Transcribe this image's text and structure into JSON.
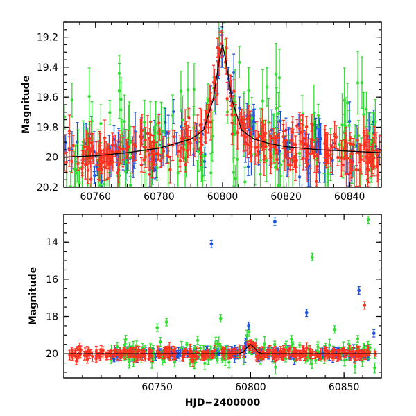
{
  "chart_data": [
    {
      "type": "scatter",
      "panel": "top",
      "xlabel": "",
      "ylabel": "Magnitude",
      "xlim": [
        60750,
        60850
      ],
      "ylim": [
        19.1,
        20.2
      ],
      "y_inverted": true,
      "xticks": [
        60760,
        60780,
        60800,
        60820,
        60840
      ],
      "xtick_labels": [
        "60760",
        "60780",
        "60800",
        "60820",
        "60840"
      ],
      "yticks": [
        19.2,
        19.4,
        19.6,
        19.8,
        20.0,
        20.2
      ],
      "ytick_labels": [
        "19.2",
        "19.4",
        "19.6",
        "19.8",
        "20",
        "20.2"
      ],
      "model_curve": {
        "x": [
          60750,
          60760,
          60770,
          60780,
          60790,
          60794,
          60797,
          60799,
          60800,
          60801,
          60803,
          60806,
          60810,
          60815,
          60820,
          60830,
          60840,
          60850
        ],
        "y": [
          20.0,
          19.99,
          19.97,
          19.94,
          19.88,
          19.82,
          19.62,
          19.35,
          19.25,
          19.35,
          19.62,
          19.82,
          19.88,
          19.91,
          19.93,
          19.95,
          19.96,
          19.97
        ]
      },
      "series": [
        {
          "color": "#2255dd",
          "marker": "circle",
          "description_of_points": "dense noisy light curve ~19.8–20.1 with large error bars, peak near 60800"
        },
        {
          "color": "#33dd33",
          "marker": "circle",
          "description_of_points": "dense noisy light curve ~19.3–20.2 with large error bars"
        },
        {
          "color": "#ff3322",
          "marker": "circle",
          "description_of_points": "dense noisy light curve ~19.6–20.2 with error bars, peak near 60800"
        }
      ]
    },
    {
      "type": "scatter",
      "panel": "bottom",
      "xlabel": "HJD−2400000",
      "ylabel": "Magnitude",
      "xlim": [
        60700,
        60870
      ],
      "ylim": [
        12.5,
        21.3
      ],
      "y_inverted": true,
      "xticks": [
        60750,
        60800,
        60850
      ],
      "xtick_labels": [
        "60750",
        "60800",
        "60850"
      ],
      "yticks": [
        14,
        16,
        18,
        20
      ],
      "ytick_labels": [
        "14",
        "16",
        "18",
        "20"
      ],
      "outliers": [
        {
          "series": "blue",
          "x": 60779,
          "y": 14.1
        },
        {
          "series": "blue",
          "x": 60813,
          "y": 12.9
        },
        {
          "series": "blue",
          "x": 60799,
          "y": 18.5
        },
        {
          "series": "blue",
          "x": 60830,
          "y": 17.8
        },
        {
          "series": "blue",
          "x": 60858,
          "y": 16.6
        },
        {
          "series": "blue",
          "x": 60866,
          "y": 18.9
        },
        {
          "series": "green",
          "x": 60833,
          "y": 14.8
        },
        {
          "series": "green",
          "x": 60863,
          "y": 12.8
        },
        {
          "series": "green",
          "x": 60750,
          "y": 18.6
        },
        {
          "series": "green",
          "x": 60755,
          "y": 18.3
        },
        {
          "series": "green",
          "x": 60784,
          "y": 18.1
        },
        {
          "series": "green",
          "x": 60845,
          "y": 18.7
        },
        {
          "series": "red",
          "x": 60861,
          "y": 17.4
        }
      ],
      "series": [
        {
          "color": "#2255dd",
          "marker": "circle",
          "description_of_points": "baseline ~19.8–20.3 from 60725 to 60867"
        },
        {
          "color": "#33dd33",
          "marker": "circle",
          "description_of_points": "baseline ~19.5–21 from 60725 to 60867"
        },
        {
          "color": "#ff3322",
          "marker": "circle",
          "description_of_points": "baseline ~19.8–20.3 from 60703 to 60867"
        }
      ]
    }
  ]
}
